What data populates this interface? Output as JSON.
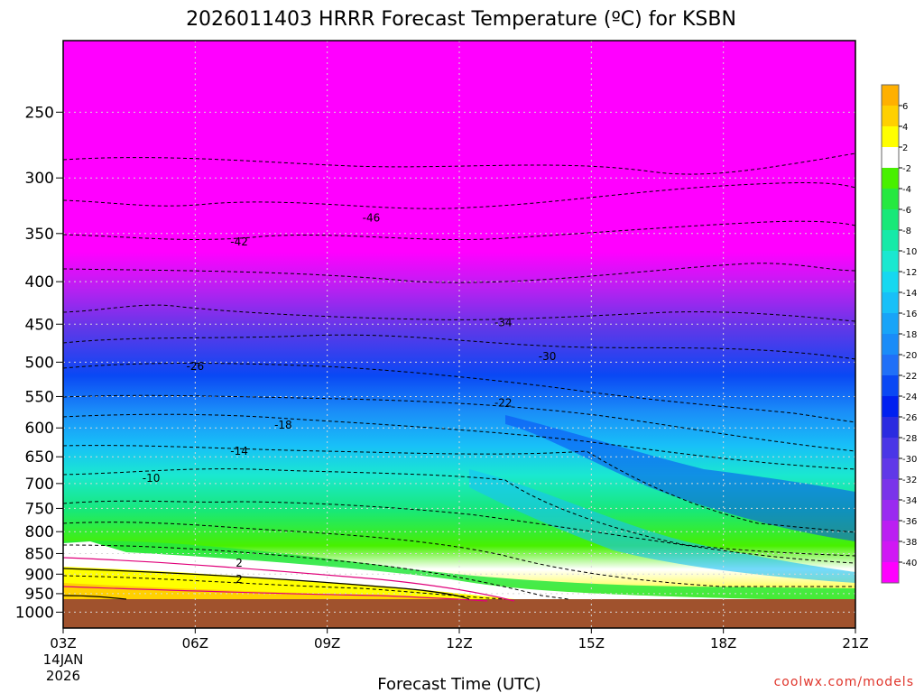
{
  "chart_data": {
    "type": "heatmap",
    "title": "2026011403 HRRR Forecast Temperature (ºC) for KSBN",
    "xlabel": "Forecast Time (UTC)",
    "ylabel": "",
    "x_ticks": [
      "03Z",
      "06Z",
      "09Z",
      "12Z",
      "15Z",
      "18Z",
      "21Z"
    ],
    "x_first_sublabels": [
      "14JAN",
      "2026"
    ],
    "y_ticks": [
      250,
      300,
      350,
      400,
      450,
      500,
      550,
      600,
      650,
      700,
      750,
      800,
      850,
      900,
      950,
      1000
    ],
    "y_scale": "log-pressure",
    "grid": true,
    "colorbar": {
      "levels": [
        6,
        4,
        2,
        -2,
        -4,
        -6,
        -8,
        -10,
        -12,
        -14,
        -16,
        -18,
        -20,
        -22,
        -24,
        -26,
        -28,
        -30,
        -32,
        -34,
        -36,
        -38,
        -40
      ],
      "colors": [
        "#ffb000",
        "#ffd000",
        "#ffff00",
        "#ffffff",
        "#48f000",
        "#26e840",
        "#18e878",
        "#16eaa8",
        "#1ae8d0",
        "#16d8f0",
        "#18c0f8",
        "#18a4f8",
        "#1a8cf8",
        "#2070f8",
        "#0a48f4",
        "#0020f0",
        "#2b2be0",
        "#4a36e6",
        "#6038e8",
        "#7a34ea",
        "#9a2af0",
        "#bb1ff2",
        "#d018f4",
        "#ff00ff"
      ]
    },
    "contour_labels": [
      {
        "time": "10Z",
        "pressure": 335,
        "value": "-46"
      },
      {
        "time": "07Z",
        "pressure": 358,
        "value": "-42"
      },
      {
        "time": "13Z",
        "pressure": 448,
        "value": "-34"
      },
      {
        "time": "14Z",
        "pressure": 492,
        "value": "-30"
      },
      {
        "time": "06Z",
        "pressure": 506,
        "value": "-26"
      },
      {
        "time": "13Z",
        "pressure": 560,
        "value": "-22"
      },
      {
        "time": "08Z",
        "pressure": 595,
        "value": "-18"
      },
      {
        "time": "07Z",
        "pressure": 640,
        "value": "-14"
      },
      {
        "time": "05Z",
        "pressure": 690,
        "value": "-10"
      },
      {
        "time": "07Z",
        "pressure": 873,
        "value": "2"
      },
      {
        "time": "07Z",
        "pressure": 913,
        "value": "2"
      }
    ],
    "series": []
  },
  "credit": "coolwx.com/models"
}
